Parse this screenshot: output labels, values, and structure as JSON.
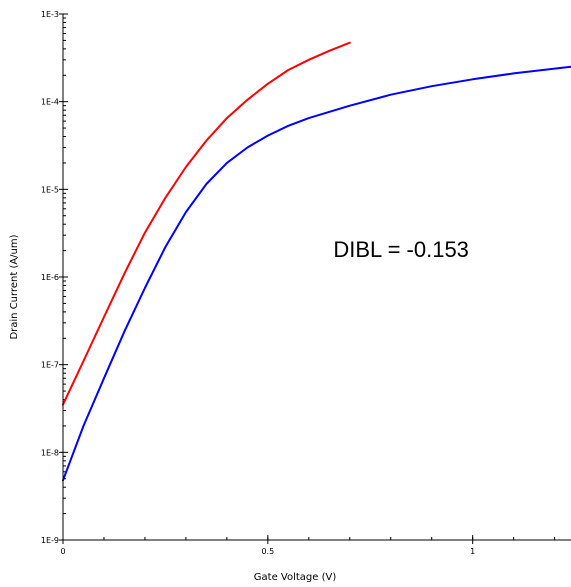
{
  "chart_data": {
    "type": "line",
    "title": "",
    "xlabel": "Gate Voltage (V)",
    "ylabel": "Drain Current (A/um)",
    "xlim": [
      0,
      1.24
    ],
    "ylim": [
      1e-09,
      0.001
    ],
    "yscale": "log",
    "grid": false,
    "x_ticks": [
      {
        "value": 0,
        "label": "0"
      },
      {
        "value": 0.5,
        "label": "0.5"
      },
      {
        "value": 1,
        "label": "1"
      }
    ],
    "y_ticks": [
      {
        "value": 1e-09,
        "label": "1E-9"
      },
      {
        "value": 1e-08,
        "label": "1E-8"
      },
      {
        "value": 1e-07,
        "label": "1E-7"
      },
      {
        "value": 1e-06,
        "label": "1E-6"
      },
      {
        "value": 1e-05,
        "label": "1E-5"
      },
      {
        "value": 0.0001,
        "label": "1E-4"
      },
      {
        "value": 0.001,
        "label": "1E-3"
      }
    ],
    "annotations": [
      {
        "text": "DIBL = -0.153",
        "x": 0.66,
        "y": 1.7e-06
      }
    ],
    "series": [
      {
        "color": "#ff0000",
        "x": [
          0,
          0.05,
          0.1,
          0.15,
          0.2,
          0.25,
          0.3,
          0.35,
          0.4,
          0.45,
          0.5,
          0.55,
          0.6,
          0.65,
          0.7
        ],
        "y": [
          3.5e-08,
          1.1e-07,
          3.5e-07,
          1.1e-06,
          3.2e-06,
          8e-06,
          1.8e-05,
          3.6e-05,
          6.5e-05,
          0.000105,
          0.00016,
          0.00023,
          0.0003,
          0.00038,
          0.00047
        ]
      },
      {
        "color": "#0000ff",
        "x": [
          0,
          0.05,
          0.1,
          0.15,
          0.2,
          0.25,
          0.3,
          0.35,
          0.4,
          0.45,
          0.5,
          0.55,
          0.6,
          0.7,
          0.8,
          0.9,
          1.0,
          1.1,
          1.24
        ],
        "y": [
          4.8e-09,
          2e-08,
          7e-08,
          2.4e-07,
          7.5e-07,
          2.2e-06,
          5.5e-06,
          1.15e-05,
          2e-05,
          3e-05,
          4.1e-05,
          5.3e-05,
          6.5e-05,
          9e-05,
          0.00012,
          0.00015,
          0.00018,
          0.00021,
          0.00025
        ]
      }
    ]
  }
}
